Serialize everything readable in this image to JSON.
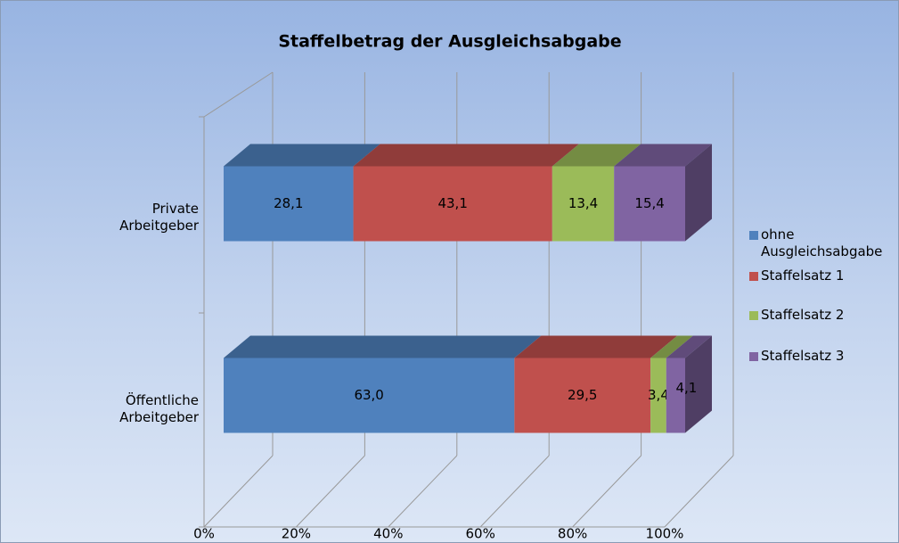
{
  "chart_data": {
    "type": "bar3d-stacked-horizontal",
    "title": "Staffelbetrag der Ausgleichsabgabe",
    "categories": [
      "Private Arbeitgeber",
      "Öffentliche Arbeitgeber"
    ],
    "series": [
      {
        "name": "ohne Ausgleichsabgabe",
        "color": "#4f81bd",
        "values": [
          28.1,
          63.0
        ],
        "value_labels": [
          "28,1",
          "63,0"
        ]
      },
      {
        "name": "Staffelsatz 1",
        "color": "#c0504d",
        "values": [
          43.1,
          29.5
        ],
        "value_labels": [
          "43,1",
          "29,5"
        ]
      },
      {
        "name": "Staffelsatz 2",
        "color": "#9bbb59",
        "values": [
          13.4,
          3.4
        ],
        "value_labels": [
          "13,4",
          "3,4"
        ]
      },
      {
        "name": "Staffelsatz 3",
        "color": "#8064a2",
        "values": [
          15.4,
          4.1
        ],
        "value_labels": [
          "15,4",
          "4,1"
        ]
      }
    ],
    "xlim": [
      0,
      100
    ],
    "xticks": [
      {
        "value": 0,
        "label": "0%"
      },
      {
        "value": 20,
        "label": "20%"
      },
      {
        "value": 40,
        "label": "40%"
      },
      {
        "value": 60,
        "label": "60%"
      },
      {
        "value": 80,
        "label": "80%"
      },
      {
        "value": 100,
        "label": "100%"
      }
    ],
    "grid": true,
    "legend": "right"
  }
}
